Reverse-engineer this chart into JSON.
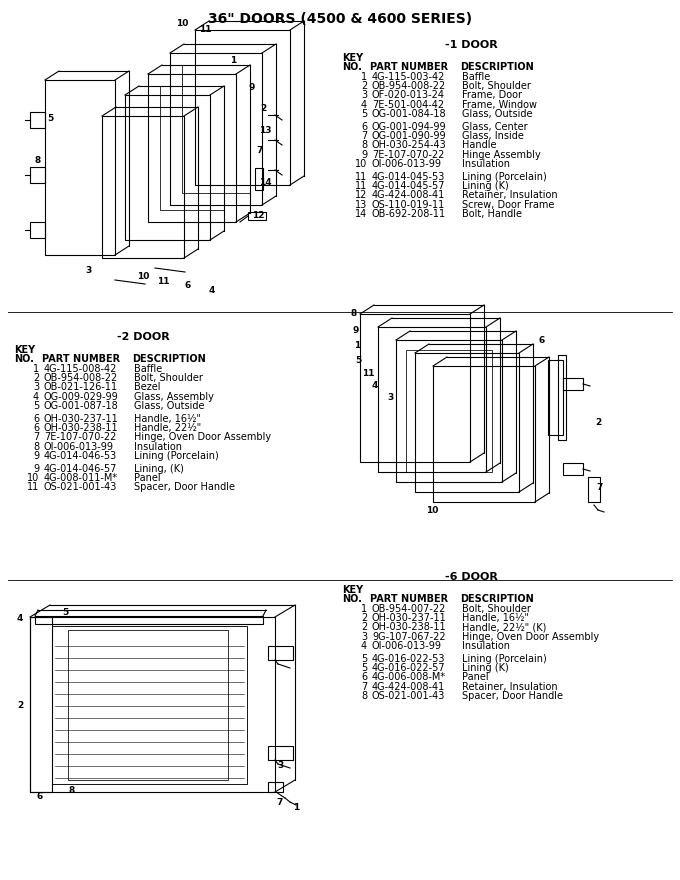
{
  "title": "36\" DOORS (4500 & 4600 SERIES)",
  "bg_color": "#ffffff",
  "text_color": "#000000",
  "section1_title": "-1 DOOR",
  "section1_rows": [
    [
      "1",
      "4G-115-003-42",
      "Baffle"
    ],
    [
      "2",
      "OB-954-008-22",
      "Bolt, Shoulder"
    ],
    [
      "3",
      "OF-020-013-24",
      "Frame, Door"
    ],
    [
      "4",
      "7E-501-004-42",
      "Frame, Window"
    ],
    [
      "5",
      "OG-001-084-18",
      "Glass, Outside"
    ],
    [
      "",
      "",
      ""
    ],
    [
      "6",
      "OG-001-094-99",
      "Glass, Center"
    ],
    [
      "7",
      "OG-001-090-99",
      "Glass, Inside"
    ],
    [
      "8",
      "OH-030-254-43",
      "Handle"
    ],
    [
      "9",
      "7E-107-070-22",
      "Hinge Assembly"
    ],
    [
      "10",
      "OI-006-013-99",
      "Insulation"
    ],
    [
      "",
      "",
      ""
    ],
    [
      "11",
      "4G-014-045-53",
      "Lining (Porcelain)"
    ],
    [
      "11",
      "4G-014-045-57",
      "Lining (K)"
    ],
    [
      "12",
      "4G-424-008-41",
      "Retainer, Insulation"
    ],
    [
      "13",
      "OS-110-019-11",
      "Screw, Door Frame"
    ],
    [
      "14",
      "OB-692-208-11",
      "Bolt, Handle"
    ]
  ],
  "section2_title": "-2 DOOR",
  "section2_rows": [
    [
      "1",
      "4G-115-008-42",
      "Baffle"
    ],
    [
      "2",
      "OB-954-008-22",
      "Bolt, Shoulder"
    ],
    [
      "3",
      "OB-021-126-11",
      "Bezel"
    ],
    [
      "4",
      "OG-009-029-99",
      "Glass, Assembly"
    ],
    [
      "5",
      "OG-001-087-18",
      "Glass, Outside"
    ],
    [
      "",
      "",
      ""
    ],
    [
      "6",
      "OH-030-237-11",
      "Handle, 16½\""
    ],
    [
      "6",
      "OH-030-238-11",
      "Handle, 22½\""
    ],
    [
      "7",
      "7E-107-070-22",
      "Hinge, Oven Door Assembly"
    ],
    [
      "8",
      "OI-006-013-99",
      "Insulation"
    ],
    [
      "9",
      "4G-014-046-53",
      "Lining (Porcelain)"
    ],
    [
      "",
      "",
      ""
    ],
    [
      "9",
      "4G-014-046-57",
      "Lining, (K)"
    ],
    [
      "10",
      "4G-008-011-M*",
      "Panel"
    ],
    [
      "11",
      "OS-021-001-43",
      "Spacer, Door Handle"
    ]
  ],
  "section3_title": "-6 DOOR",
  "section3_rows": [
    [
      "1",
      "OB-954-007-22",
      "Bolt, Shoulder"
    ],
    [
      "2",
      "OH-030-237-11",
      "Handle, 16½\""
    ],
    [
      "2",
      "OH-030-238-11",
      "Handle, 22½\" (K)"
    ],
    [
      "3",
      "9G-107-067-22",
      "Hinge, Oven Door Assembly"
    ],
    [
      "4",
      "OI-006-013-99",
      "Insulation"
    ],
    [
      "",
      "",
      ""
    ],
    [
      "5",
      "4G-016-022-53",
      "Lining (Porcelain)"
    ],
    [
      "5",
      "4G-016-022-57",
      "Lining (K)"
    ],
    [
      "6",
      "4G-006-008-M*",
      "Panel"
    ],
    [
      "7",
      "4G-424-008-41",
      "Retainer, Insulation"
    ],
    [
      "8",
      "OS-021-001-43",
      "Spacer, Door Handle"
    ]
  ]
}
